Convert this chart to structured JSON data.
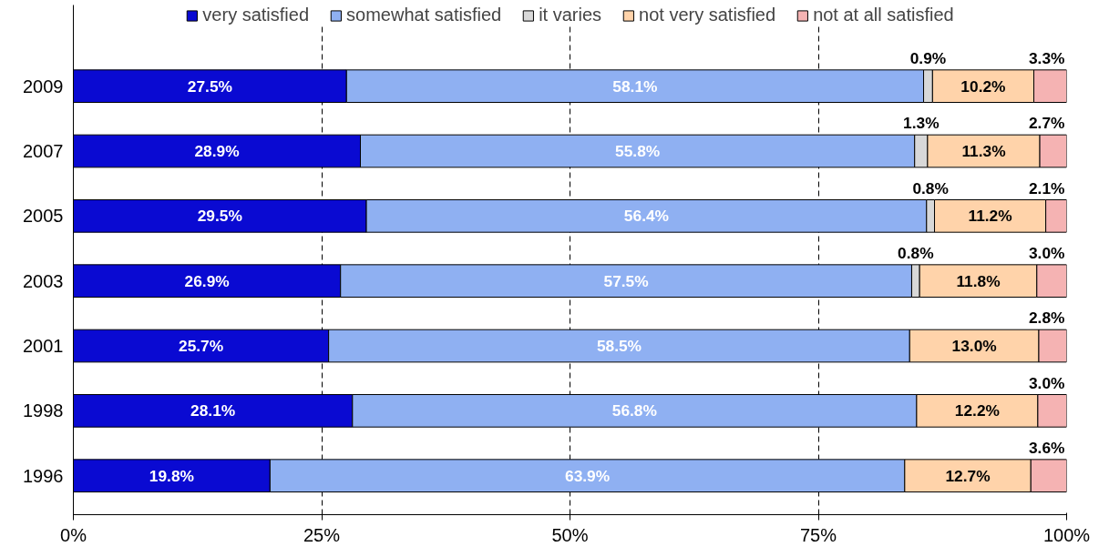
{
  "chart_data": {
    "type": "bar",
    "orientation": "horizontal",
    "stacked": true,
    "categories": [
      "2009",
      "2007",
      "2005",
      "2003",
      "2001",
      "1998",
      "1996"
    ],
    "series": [
      {
        "name": "very satisfied",
        "color": "#0a0ad2",
        "values": [
          27.5,
          28.9,
          29.5,
          26.9,
          25.7,
          28.1,
          19.8
        ],
        "value_labels": [
          "27.5%",
          "28.9%",
          "29.5%",
          "26.9%",
          "25.7%",
          "28.1%",
          "19.8%"
        ]
      },
      {
        "name": "somewhat satisfied",
        "color": "#8fb0f2",
        "values": [
          58.1,
          55.8,
          56.4,
          57.5,
          58.5,
          56.8,
          63.9
        ],
        "value_labels": [
          "58.1%",
          "55.8%",
          "56.4%",
          "57.5%",
          "58.5%",
          "56.8%",
          "63.9%"
        ]
      },
      {
        "name": "it varies",
        "color": "#d8d8d8",
        "values": [
          0.9,
          1.3,
          0.8,
          0.8,
          null,
          null,
          null
        ],
        "value_labels": [
          "0.9%",
          "1.3%",
          "0.8%",
          "0.8%",
          null,
          null,
          null
        ]
      },
      {
        "name": "not very satisfied",
        "color": "#ffd3aa",
        "values": [
          10.2,
          11.3,
          11.2,
          11.8,
          13.0,
          12.2,
          12.7
        ],
        "value_labels": [
          "10.2%",
          "11.3%",
          "11.2%",
          "11.8%",
          "13.0%",
          "12.2%",
          "12.7%"
        ]
      },
      {
        "name": "not at all satisfied",
        "color": "#f5b3b3",
        "values": [
          3.3,
          2.7,
          2.1,
          3.0,
          2.8,
          3.0,
          3.6
        ],
        "value_labels": [
          "3.3%",
          "2.7%",
          "2.1%",
          "3.0%",
          "2.8%",
          "3.0%",
          "3.6%"
        ]
      }
    ],
    "xlim": [
      0,
      100
    ],
    "xticks": [
      {
        "value": 0,
        "label": "0%"
      },
      {
        "value": 25,
        "label": "25%"
      },
      {
        "value": 50,
        "label": "50%"
      },
      {
        "value": 75,
        "label": "75%"
      },
      {
        "value": 100,
        "label": "100%"
      }
    ],
    "grid": "x",
    "legend": "top"
  }
}
